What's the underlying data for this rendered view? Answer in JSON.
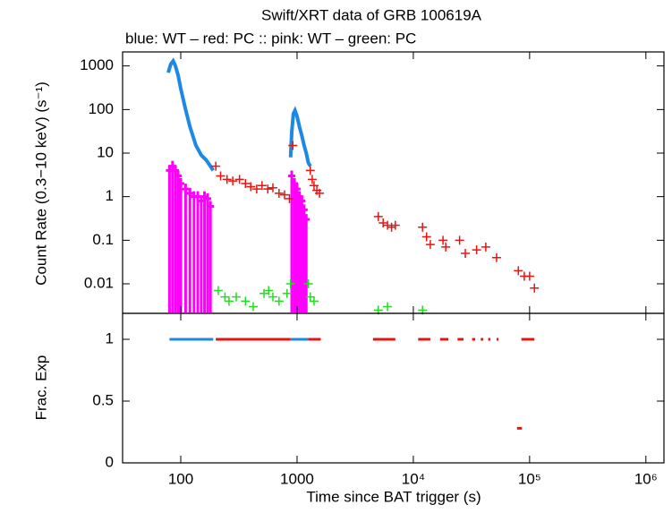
{
  "chart_data": [
    {
      "type": "scatter",
      "title": "Swift/XRT data of GRB 100619A",
      "subtitle": "blue: WT  – red: PC  :: pink: WT  – green: PC",
      "ylabel": "Count Rate (0.3−10 keV) (s⁻¹)",
      "xscale": "log",
      "yscale": "log",
      "xlim": [
        31.6,
        1430000
      ],
      "ylim": [
        0.0021,
        2100
      ],
      "xticks": [
        100,
        1000,
        10000,
        100000,
        1000000
      ],
      "yticks": [
        0.01,
        0.1,
        1,
        10,
        100,
        1000
      ],
      "series": [
        {
          "color": "#ff00ff",
          "marker": "floor-bar",
          "x": [
            80,
            85,
            90,
            95,
            100,
            110,
            120,
            130,
            140,
            150,
            160,
            170,
            180,
            900,
            950,
            1000,
            1050,
            1100,
            1150,
            1200
          ],
          "values": [
            4,
            5,
            4,
            3,
            2,
            1.5,
            1.2,
            1,
            1,
            0.8,
            1,
            0.9,
            0.6,
            3,
            2,
            1.5,
            1,
            0.8,
            0.5,
            0.3
          ]
        },
        {
          "color": "#1e88e5",
          "marker": "line",
          "x": [
            78,
            82,
            86,
            90,
            95,
            100,
            110,
            120,
            135,
            150,
            165,
            180,
            190,
            null,
            880,
            900,
            930,
            960,
            1000,
            1050,
            1100,
            1150,
            1200,
            1250,
            1300
          ],
          "values": [
            700,
            1100,
            1300,
            1000,
            600,
            300,
            100,
            40,
            15,
            9,
            7,
            5,
            4,
            null,
            8,
            30,
            80,
            95,
            70,
            40,
            25,
            15,
            10,
            6,
            5
          ]
        },
        {
          "color": "#22dd22",
          "marker": "cross",
          "x": [
            210,
            240,
            260,
            300,
            360,
            420,
            520,
            570,
            620,
            700,
            820,
            880,
            1250,
            1300,
            1400,
            5000,
            6000,
            12000
          ],
          "values": [
            0.007,
            0.005,
            0.004,
            0.005,
            0.004,
            0.003,
            0.006,
            0.007,
            0.005,
            0.004,
            0.006,
            0.01,
            0.01,
            0.005,
            0.004,
            0.0025,
            0.003,
            0.0025
          ]
        },
        {
          "color": "#e8140f",
          "marker": "cross",
          "x": [
            200,
            220,
            250,
            280,
            320,
            360,
            400,
            450,
            500,
            560,
            620,
            700,
            780,
            860,
            920,
            1300,
            1350,
            1400,
            1480,
            1560,
            5000,
            5500,
            6000,
            6500,
            7000,
            12000,
            13000,
            14000,
            18000,
            19000,
            25000,
            28000,
            35000,
            42000,
            52000,
            80000,
            90000,
            100000,
            110000
          ],
          "values": [
            5,
            3,
            2.5,
            2.3,
            2.5,
            2,
            1.7,
            1.5,
            1.8,
            1.5,
            1.6,
            1.2,
            1.1,
            0.9,
            15,
            4,
            2.5,
            1.8,
            1.4,
            1.2,
            0.35,
            0.25,
            0.22,
            0.2,
            0.22,
            0.2,
            0.12,
            0.08,
            0.1,
            0.07,
            0.1,
            0.05,
            0.06,
            0.07,
            0.04,
            0.02,
            0.015,
            0.015,
            0.008
          ]
        }
      ]
    },
    {
      "type": "scatter",
      "xlabel": "Time since BAT trigger (s)",
      "ylabel": "Frac. Exp",
      "xscale": "log",
      "yscale": "linear",
      "xlim": [
        31.6,
        1430000
      ],
      "ylim": [
        0,
        1.21
      ],
      "xticks": [
        100,
        1000,
        {
          "value": 10000,
          "label": "10⁴"
        },
        {
          "value": 100000,
          "label": "10⁵"
        },
        {
          "value": 1000000,
          "label": "10⁶"
        }
      ],
      "yticks": [
        0,
        0.5,
        1
      ],
      "series": [
        {
          "color": "#1e88e5",
          "marker": "segment",
          "x": [
            80,
            880
          ],
          "x_end": [
            190,
            1250
          ],
          "values": [
            1,
            1
          ]
        },
        {
          "color": "#e8140f",
          "marker": "segment",
          "x": [
            200,
            1250,
            4500,
            11000,
            17000,
            24000,
            32000,
            38000,
            44000,
            52000,
            78000,
            85000
          ],
          "x_end": [
            880,
            1600,
            7000,
            14000,
            20000,
            27000,
            34000,
            40000,
            46000,
            54000,
            86000,
            110000
          ],
          "values": [
            1,
            1,
            1,
            1,
            1,
            1,
            1,
            1,
            1,
            1,
            0.28,
            1
          ]
        }
      ]
    }
  ]
}
